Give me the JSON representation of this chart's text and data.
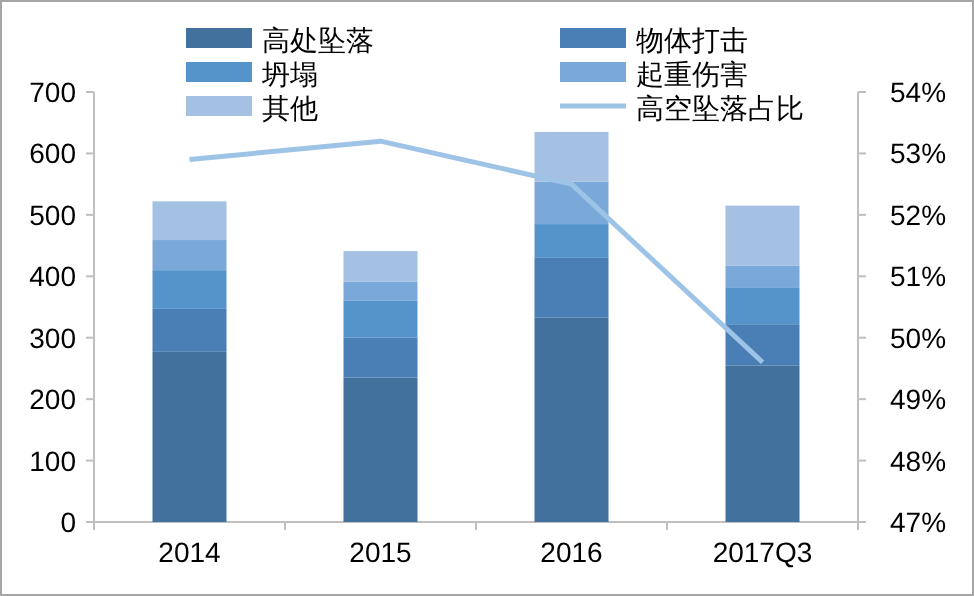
{
  "chart_data": {
    "type": "bar",
    "stacked": true,
    "categories": [
      "2014",
      "2015",
      "2016",
      "2017Q3"
    ],
    "series": [
      {
        "name": "高处坠落",
        "color": "#41719c",
        "values": [
          277,
          235,
          333,
          255
        ]
      },
      {
        "name": "物体打击",
        "color": "#4a7fb5",
        "values": [
          70,
          65,
          97,
          67
        ]
      },
      {
        "name": "坍塌",
        "color": "#5593cb",
        "values": [
          63,
          60,
          55,
          59
        ]
      },
      {
        "name": "起重伤害",
        "color": "#7aa8d8",
        "values": [
          49,
          31,
          69,
          36
        ]
      },
      {
        "name": "其他",
        "color": "#a4c1e4",
        "values": [
          63,
          50,
          81,
          98
        ]
      },
      {
        "name": "高空坠落占比",
        "type": "line",
        "axis": "y2",
        "color": "#9dc3e6",
        "values": [
          52.9,
          53.2,
          52.5,
          49.6
        ]
      }
    ],
    "ylim": [
      0,
      700
    ],
    "yticks": [
      0,
      100,
      200,
      300,
      400,
      500,
      600,
      700
    ],
    "y2lim": [
      47,
      54
    ],
    "y2ticks": [
      {
        "value": 47,
        "label": "47%"
      },
      {
        "value": 48,
        "label": "48%"
      },
      {
        "value": 49,
        "label": "49%"
      },
      {
        "value": 50,
        "label": "50%"
      },
      {
        "value": 51,
        "label": "51%"
      },
      {
        "value": 52,
        "label": "52%"
      },
      {
        "value": 53,
        "label": "53%"
      },
      {
        "value": 54,
        "label": "54%"
      }
    ],
    "legend": "top",
    "grid": false
  }
}
